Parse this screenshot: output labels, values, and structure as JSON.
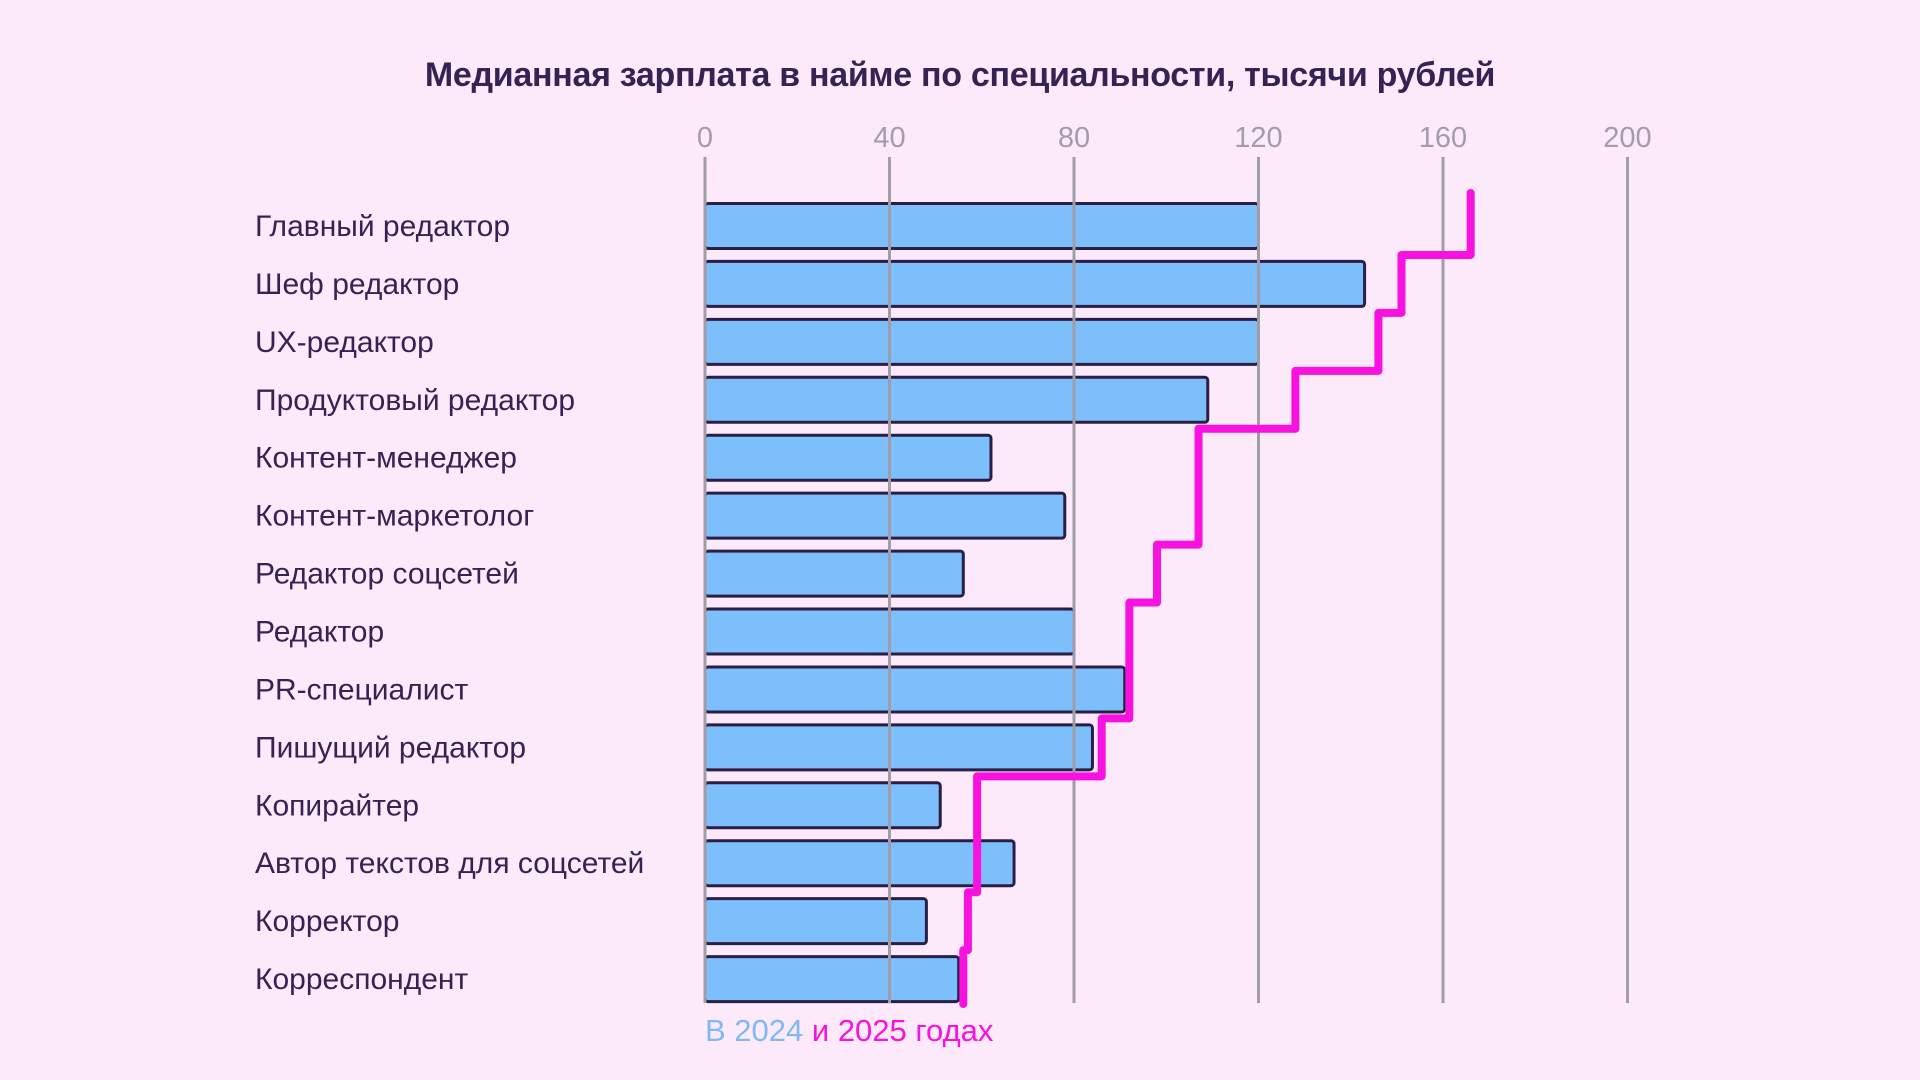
{
  "title": "Медианная зарплата в найме по специальности, тысячи рублей",
  "legend": {
    "blue_text": "В 2024",
    "magenta_text": "и 2025 годах"
  },
  "chart_data": {
    "type": "bar",
    "orientation": "horizontal",
    "title": "Медианная зарплата в найме по специальности, тысячи рублей",
    "unit": "тысячи рублей",
    "categories": [
      "Главный редактор",
      "Шеф редактор",
      "UX-редактор",
      "Продуктовый редактор",
      "Контент-менеджер",
      "Контент-маркетолог",
      "Редактор соцсетей",
      "Редактор",
      "PR-специалист",
      "Пишущий редактор",
      "Копирайтер",
      "Автор текстов для соцсетей",
      "Корректор",
      "Корреспондент"
    ],
    "series": [
      {
        "name": "2024",
        "style": "bar",
        "color": "#7CBFFB",
        "values": [
          120,
          143,
          120,
          109,
          62,
          78,
          56,
          80,
          91,
          84,
          51,
          67,
          48,
          55
        ]
      },
      {
        "name": "2025",
        "style": "step-line",
        "color": "#F712DF",
        "values": [
          166,
          151,
          146,
          128,
          107,
          107,
          98,
          92,
          92,
          86,
          59,
          59,
          57,
          56
        ]
      }
    ],
    "x_ticks": [
      0,
      40,
      80,
      120,
      160,
      200
    ],
    "xlim": [
      0,
      200
    ],
    "grid": "vertical",
    "legend_position": "bottom-left"
  },
  "colors": {
    "background": "#FCE9FA",
    "bar_fill": "#7CBFFB",
    "bar_outline": "#2C1D45",
    "step_line": "#F712DF",
    "gridline": "#A09DA8",
    "tick_label": "#A29CAB",
    "text_dark": "#352353",
    "legend_blue": "#7FB9F4"
  }
}
